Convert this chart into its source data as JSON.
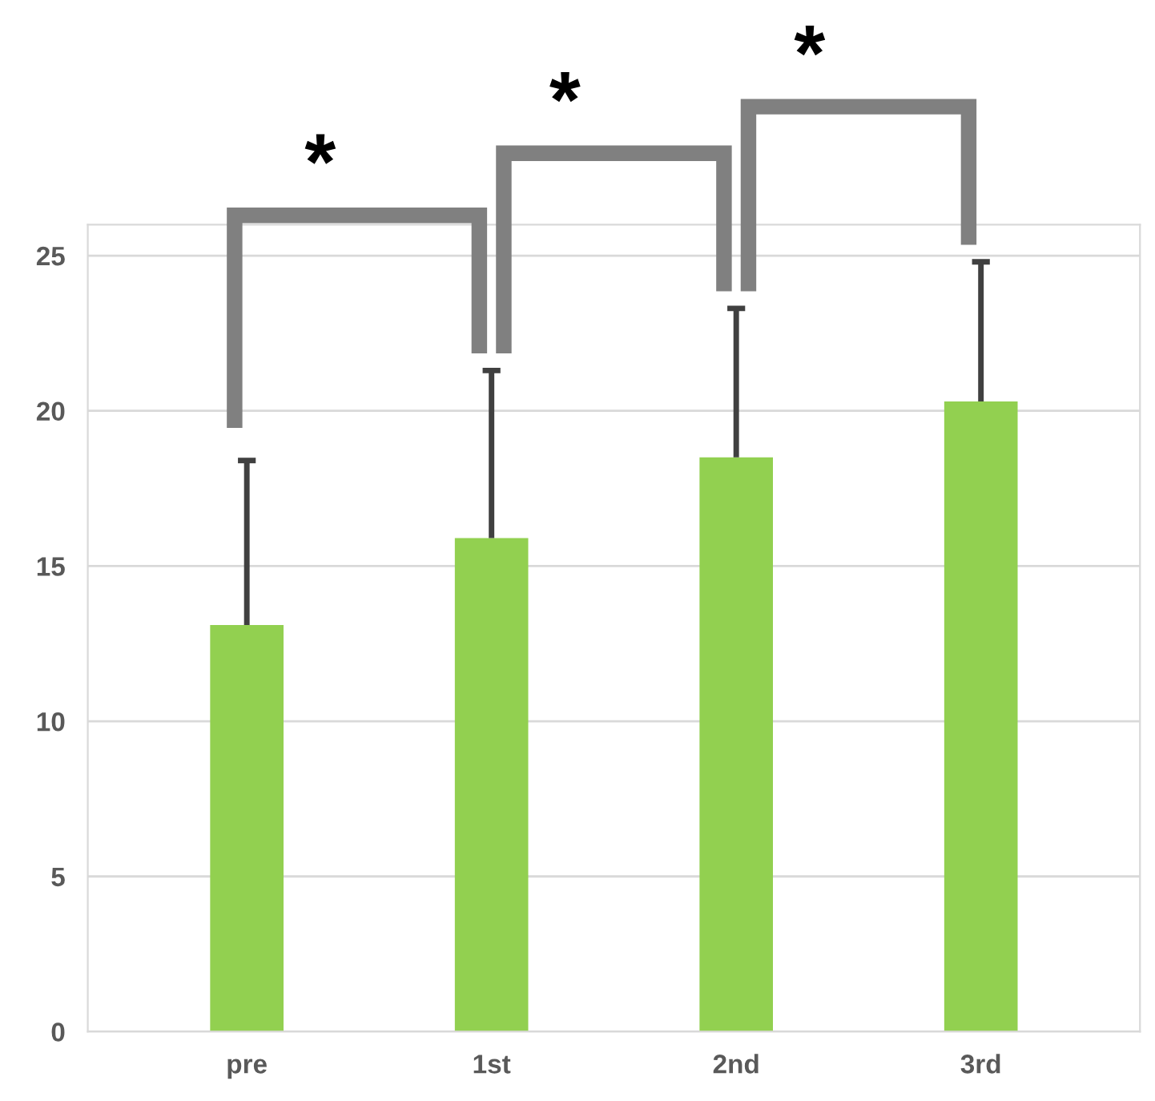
{
  "chart_data": {
    "type": "bar",
    "categories": [
      "pre",
      "1st",
      "2nd",
      "3rd"
    ],
    "values": [
      13.1,
      15.9,
      18.5,
      20.3
    ],
    "errors": [
      [
        13.1,
        18.4
      ],
      [
        15.9,
        21.3
      ],
      [
        18.5,
        23.3
      ],
      [
        20.3,
        24.8
      ]
    ],
    "color": "#92d050",
    "ylim": [
      0,
      26
    ],
    "yticks": [
      0,
      5,
      10,
      15,
      20,
      25
    ],
    "grid": "y",
    "annotations": [
      "*",
      "*",
      "*"
    ]
  }
}
